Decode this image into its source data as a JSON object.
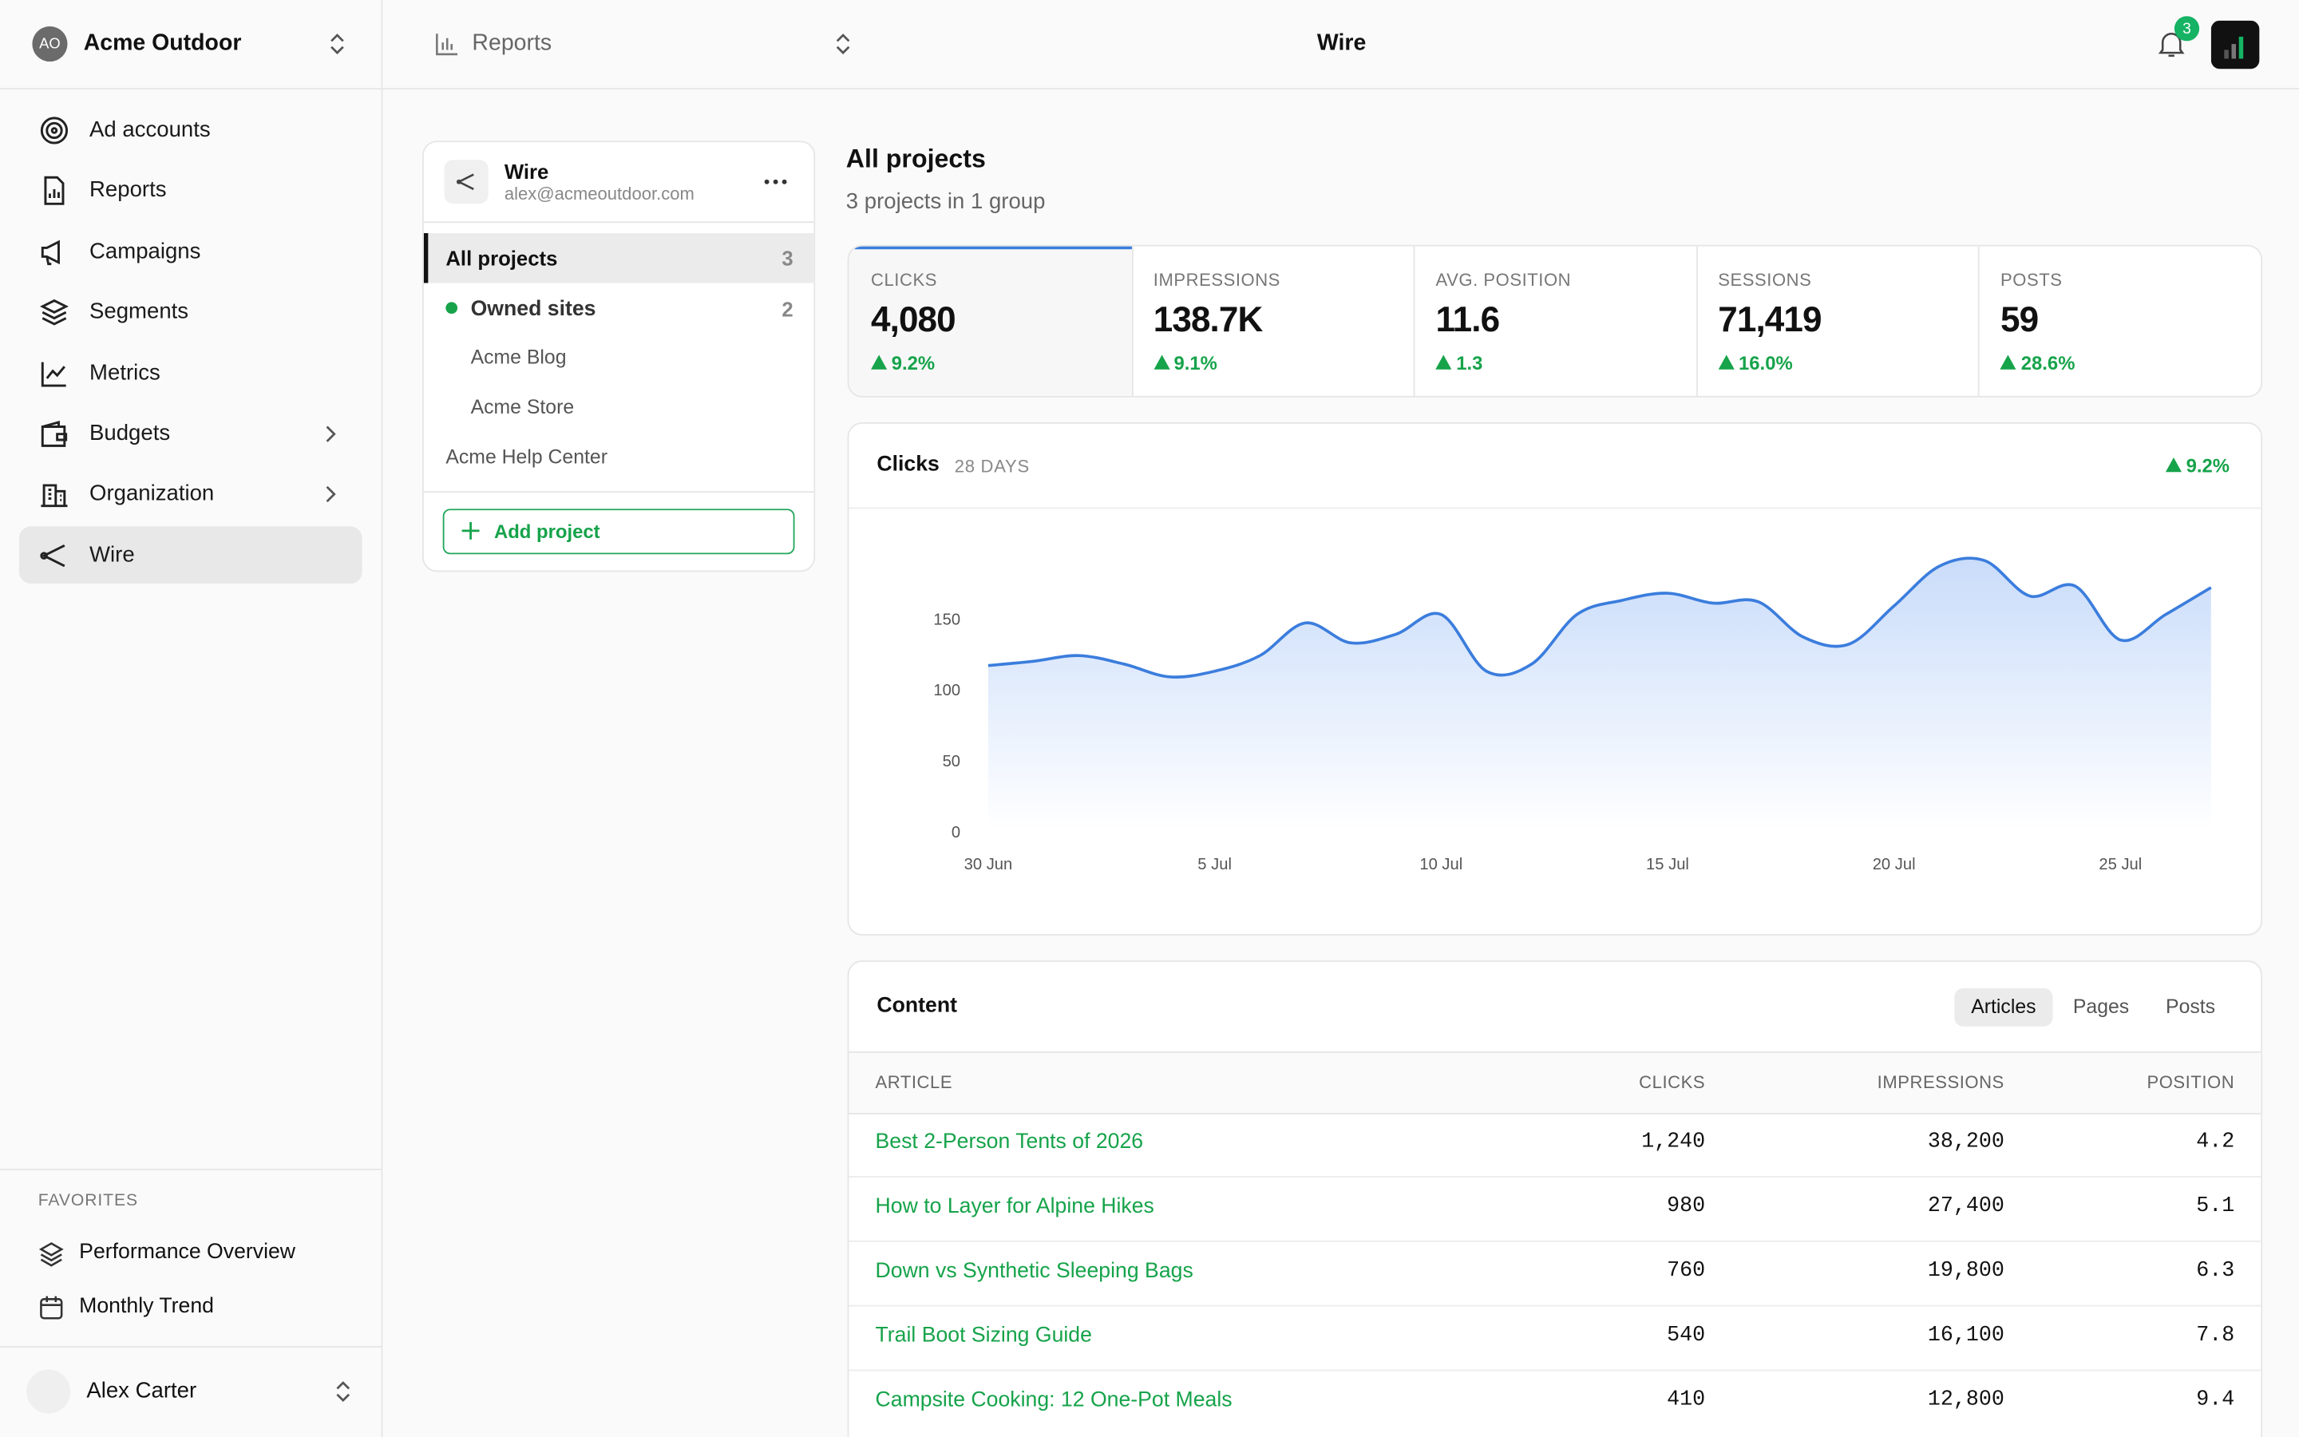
{
  "workspace": {
    "initials": "AO",
    "name": "Acme Outdoor"
  },
  "nav": [
    "Ad accounts",
    "Reports",
    "Campaigns",
    "Segments",
    "Metrics",
    "Budgets",
    "Organization",
    "Wire"
  ],
  "favorites": {
    "title": "FAVORITES",
    "items": [
      "Performance Overview",
      "Monthly Trend"
    ]
  },
  "user": {
    "name": "Alex Carter"
  },
  "topbar": {
    "breadcrumb": "Reports",
    "title": "Wire",
    "notifications": 3
  },
  "project_panel": {
    "name": "Wire",
    "email": "alex@acmeoutdoor.com",
    "all": {
      "label": "All projects",
      "count": 3
    },
    "group": {
      "label": "Owned sites",
      "count": 2,
      "items": [
        "Acme Blog",
        "Acme Store"
      ]
    },
    "ungrouped": [
      "Acme Help Center"
    ],
    "add": "Add project"
  },
  "header": {
    "title": "All projects",
    "subtitle": "3 projects in 1 group"
  },
  "stats": [
    {
      "label": "CLICKS",
      "value": "4,080",
      "change": "9.2%"
    },
    {
      "label": "IMPRESSIONS",
      "value": "138.7K",
      "change": "9.1%"
    },
    {
      "label": "AVG. POSITION",
      "value": "11.6",
      "change": "1.3"
    },
    {
      "label": "SESSIONS",
      "value": "71,419",
      "change": "16.0%"
    },
    {
      "label": "POSTS",
      "value": "59",
      "change": "28.6%"
    }
  ],
  "chart_card": {
    "title": "Clicks",
    "period": "28 DAYS",
    "change": "9.2%",
    "chart_data": {
      "type": "line",
      "categories": [
        "30 Jun",
        null,
        null,
        null,
        null,
        "5 Jul",
        null,
        null,
        null,
        null,
        "10 Jul",
        null,
        null,
        null,
        null,
        "15 Jul",
        null,
        null,
        null,
        null,
        "20 Jul",
        null,
        null,
        null,
        null,
        "25 Jul",
        null,
        null
      ],
      "values": [
        117,
        120,
        124,
        118,
        109,
        113,
        124,
        147,
        133,
        139,
        153,
        113,
        118,
        153,
        163,
        168,
        161,
        162,
        137,
        132,
        159,
        187,
        191,
        166,
        173,
        135,
        153,
        172
      ],
      "color": "#3b7ddd",
      "ylim": [
        0,
        200
      ],
      "yticks": [
        0,
        50,
        100,
        150
      ]
    }
  },
  "content": {
    "title": "Content",
    "tabs": [
      "Articles",
      "Pages",
      "Posts"
    ],
    "table": {
      "columns": [
        "ARTICLE",
        "CLICKS",
        "IMPRESSIONS",
        "POSITION"
      ],
      "rows": [
        [
          "Best 2-Person Tents of 2026",
          "1,240",
          "38,200",
          "4.2"
        ],
        [
          "How to Layer for Alpine Hikes",
          "980",
          "27,400",
          "5.1"
        ],
        [
          "Down vs Synthetic Sleeping Bags",
          "760",
          "19,800",
          "6.3"
        ],
        [
          "Trail Boot Sizing Guide",
          "540",
          "16,100",
          "7.8"
        ],
        [
          "Campsite Cooking: 12 One-Pot Meals",
          "410",
          "12,800",
          "9.4"
        ]
      ]
    }
  }
}
